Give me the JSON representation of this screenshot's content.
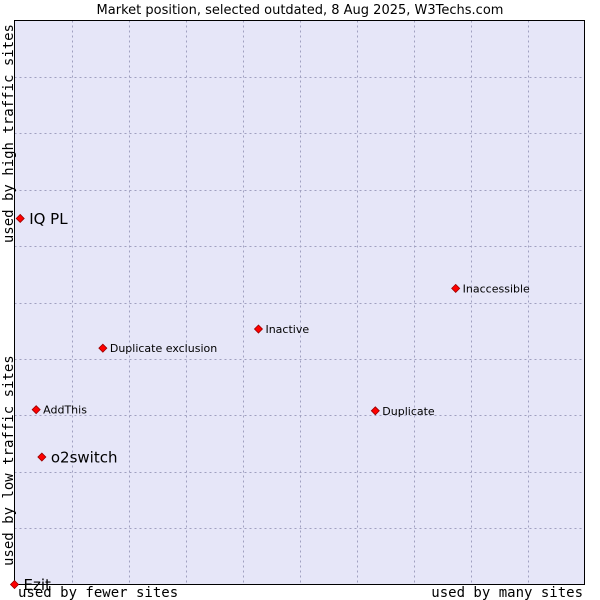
{
  "chart_data": {
    "type": "scatter",
    "title": "Market position, selected outdated, 8 Aug 2025, W3Techs.com",
    "xlabel_left": "used by fewer sites",
    "xlabel_right": "used by many sites",
    "ylabel_bottom": "used by low traffic sites",
    "ylabel_top": "used by high traffic sites",
    "xlim": [
      0,
      100
    ],
    "ylim": [
      0,
      100
    ],
    "grid": true,
    "colors": {
      "plot_background": "#e6e6f8",
      "grid": "#a0a0c0",
      "frame": "#000000",
      "marker_fill": "#ff0000",
      "marker_stroke": "#990000"
    },
    "points": [
      {
        "label": "IQ PL",
        "x": 1.0,
        "y": 64.9,
        "size": "large"
      },
      {
        "label": "Inaccessible",
        "x": 77.4,
        "y": 52.5,
        "size": "small"
      },
      {
        "label": "Inactive",
        "x": 42.8,
        "y": 45.3,
        "size": "small"
      },
      {
        "label": "Duplicate exclusion",
        "x": 15.5,
        "y": 41.9,
        "size": "small"
      },
      {
        "label": "AddThis",
        "x": 3.8,
        "y": 31.0,
        "size": "small"
      },
      {
        "label": "Duplicate",
        "x": 63.3,
        "y": 30.8,
        "size": "small"
      },
      {
        "label": "o2switch",
        "x": 4.8,
        "y": 22.6,
        "size": "large"
      },
      {
        "label": "Ezit",
        "x": 0.0,
        "y": 0.0,
        "size": "large"
      }
    ]
  }
}
